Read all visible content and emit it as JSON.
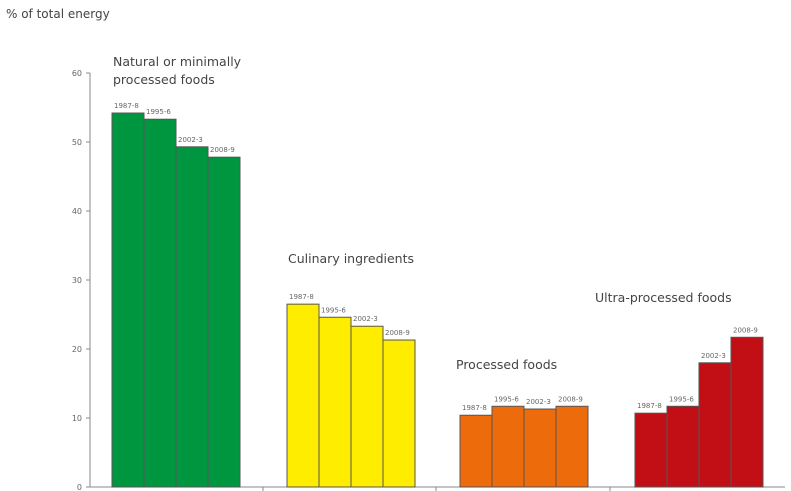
{
  "chart_data": {
    "type": "bar",
    "ylabel": "% of total energy",
    "ylim": [
      0,
      60
    ],
    "yticks": [
      "0",
      "10",
      "20",
      "30",
      "40",
      "50",
      "60"
    ],
    "series_labels": [
      "1987-8",
      "1995-6",
      "2002-3",
      "2008-9"
    ],
    "groups": [
      {
        "name": "Natural or minimally processed foods",
        "name_lines": [
          "Natural or minimally",
          "processed foods"
        ],
        "values": [
          54.2,
          53.3,
          49.3,
          47.8
        ],
        "color": "#00963F"
      },
      {
        "name": "Culinary ingredients",
        "name_lines": [
          "Culinary ingredients"
        ],
        "values": [
          26.5,
          24.6,
          23.3,
          21.3
        ],
        "color": "#FFED00"
      },
      {
        "name": "Processed foods",
        "name_lines": [
          "Processed foods"
        ],
        "values": [
          10.4,
          11.7,
          11.3,
          11.7
        ],
        "color": "#EE6B0B"
      },
      {
        "name": "Ultra-processed foods",
        "name_lines": [
          "Ultra-processed foods"
        ],
        "values": [
          10.7,
          11.7,
          18.0,
          21.7
        ],
        "color": "#C20E15"
      }
    ]
  }
}
